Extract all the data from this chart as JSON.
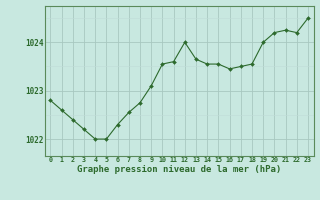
{
  "hours": [
    0,
    1,
    2,
    3,
    4,
    5,
    6,
    7,
    8,
    9,
    10,
    11,
    12,
    13,
    14,
    15,
    16,
    17,
    18,
    19,
    20,
    21,
    22,
    23
  ],
  "pressure": [
    1022.8,
    1022.6,
    1022.4,
    1022.2,
    1022.0,
    1022.0,
    1022.3,
    1022.55,
    1022.75,
    1023.1,
    1023.55,
    1023.6,
    1024.0,
    1023.65,
    1023.55,
    1023.55,
    1023.45,
    1023.5,
    1023.55,
    1024.0,
    1024.2,
    1024.25,
    1024.2,
    1024.5
  ],
  "line_color": "#2d6a2d",
  "marker_color": "#2d6a2d",
  "bg_color": "#c8e8e0",
  "grid_color_major": "#a8c8c0",
  "grid_color_minor": "#c0ddd8",
  "axis_label_color": "#2d6a2d",
  "tick_color": "#2d6a2d",
  "xlabel": "Graphe pression niveau de la mer (hPa)",
  "yticks": [
    1022,
    1023,
    1024
  ],
  "ylim": [
    1021.65,
    1024.75
  ],
  "xlim": [
    -0.5,
    23.5
  ],
  "xlabel_fontsize": 6.5,
  "ytick_fontsize": 5.5,
  "xtick_fontsize": 4.8
}
